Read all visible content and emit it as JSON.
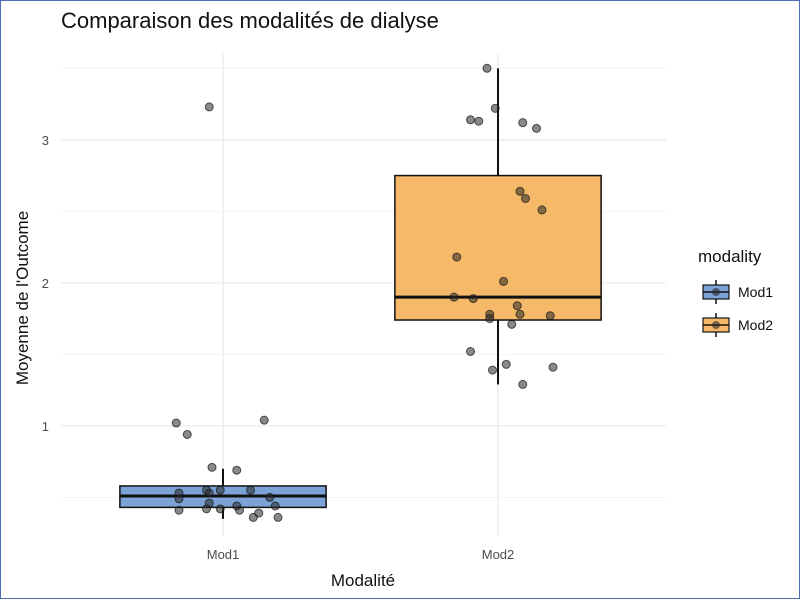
{
  "chart_data": {
    "type": "boxplot",
    "title": "Comparaison des modalités de dialyse",
    "xlabel": "Modalité",
    "ylabel": "Moyenne de l'Outcome",
    "categories": [
      "Mod1",
      "Mod2"
    ],
    "ylim": [
      0.23,
      3.6
    ],
    "yticks": [
      1,
      2,
      3
    ],
    "grid": true,
    "legend": {
      "title": "modality",
      "placement": "right",
      "entries": [
        "Mod1",
        "Mod2"
      ]
    },
    "colors": {
      "Mod1": "#7ba3d6",
      "Mod2": "#f5b969",
      "point": "#333333",
      "grid": "#ebebeb"
    },
    "boxes": [
      {
        "category": "Mod1",
        "whisker_low": 0.35,
        "q1": 0.43,
        "median": 0.51,
        "q3": 0.58,
        "whisker_high": 0.7,
        "outliers": [
          3.23,
          1.04,
          1.02,
          0.94
        ]
      },
      {
        "category": "Mod2",
        "whisker_low": 1.29,
        "q1": 1.74,
        "median": 1.9,
        "q3": 2.75,
        "whisker_high": 3.5,
        "outliers": []
      }
    ],
    "points": [
      {
        "category": "Mod1",
        "jitter": -0.05,
        "y": 3.23
      },
      {
        "category": "Mod1",
        "jitter": -0.17,
        "y": 1.02
      },
      {
        "category": "Mod1",
        "jitter": -0.13,
        "y": 0.94
      },
      {
        "category": "Mod1",
        "jitter": 0.15,
        "y": 1.04
      },
      {
        "category": "Mod1",
        "jitter": -0.04,
        "y": 0.71
      },
      {
        "category": "Mod1",
        "jitter": 0.05,
        "y": 0.69
      },
      {
        "category": "Mod1",
        "jitter": -0.16,
        "y": 0.53
      },
      {
        "category": "Mod1",
        "jitter": -0.16,
        "y": 0.49
      },
      {
        "category": "Mod1",
        "jitter": -0.06,
        "y": 0.55
      },
      {
        "category": "Mod1",
        "jitter": -0.01,
        "y": 0.55
      },
      {
        "category": "Mod1",
        "jitter": 0.1,
        "y": 0.55
      },
      {
        "category": "Mod1",
        "jitter": -0.05,
        "y": 0.53
      },
      {
        "category": "Mod1",
        "jitter": -0.05,
        "y": 0.46
      },
      {
        "category": "Mod1",
        "jitter": 0.17,
        "y": 0.5
      },
      {
        "category": "Mod1",
        "jitter": 0.19,
        "y": 0.44
      },
      {
        "category": "Mod1",
        "jitter": -0.16,
        "y": 0.41
      },
      {
        "category": "Mod1",
        "jitter": -0.06,
        "y": 0.42
      },
      {
        "category": "Mod1",
        "jitter": -0.01,
        "y": 0.42
      },
      {
        "category": "Mod1",
        "jitter": 0.05,
        "y": 0.44
      },
      {
        "category": "Mod1",
        "jitter": 0.06,
        "y": 0.41
      },
      {
        "category": "Mod1",
        "jitter": 0.11,
        "y": 0.36
      },
      {
        "category": "Mod1",
        "jitter": 0.13,
        "y": 0.39
      },
      {
        "category": "Mod1",
        "jitter": 0.2,
        "y": 0.36
      },
      {
        "category": "Mod2",
        "jitter": -0.04,
        "y": 3.5
      },
      {
        "category": "Mod2",
        "jitter": -0.01,
        "y": 3.22
      },
      {
        "category": "Mod2",
        "jitter": -0.1,
        "y": 3.14
      },
      {
        "category": "Mod2",
        "jitter": -0.07,
        "y": 3.13
      },
      {
        "category": "Mod2",
        "jitter": 0.09,
        "y": 3.12
      },
      {
        "category": "Mod2",
        "jitter": 0.14,
        "y": 3.08
      },
      {
        "category": "Mod2",
        "jitter": 0.08,
        "y": 2.64
      },
      {
        "category": "Mod2",
        "jitter": 0.1,
        "y": 2.59
      },
      {
        "category": "Mod2",
        "jitter": 0.16,
        "y": 2.51
      },
      {
        "category": "Mod2",
        "jitter": -0.15,
        "y": 2.18
      },
      {
        "category": "Mod2",
        "jitter": 0.02,
        "y": 2.01
      },
      {
        "category": "Mod2",
        "jitter": -0.16,
        "y": 1.9
      },
      {
        "category": "Mod2",
        "jitter": -0.09,
        "y": 1.89
      },
      {
        "category": "Mod2",
        "jitter": 0.07,
        "y": 1.84
      },
      {
        "category": "Mod2",
        "jitter": -0.03,
        "y": 1.78
      },
      {
        "category": "Mod2",
        "jitter": 0.08,
        "y": 1.78
      },
      {
        "category": "Mod2",
        "jitter": -0.03,
        "y": 1.75
      },
      {
        "category": "Mod2",
        "jitter": 0.19,
        "y": 1.77
      },
      {
        "category": "Mod2",
        "jitter": 0.05,
        "y": 1.71
      },
      {
        "category": "Mod2",
        "jitter": -0.1,
        "y": 1.52
      },
      {
        "category": "Mod2",
        "jitter": 0.03,
        "y": 1.43
      },
      {
        "category": "Mod2",
        "jitter": -0.02,
        "y": 1.39
      },
      {
        "category": "Mod2",
        "jitter": 0.09,
        "y": 1.29
      },
      {
        "category": "Mod2",
        "jitter": 0.2,
        "y": 1.41
      }
    ]
  }
}
